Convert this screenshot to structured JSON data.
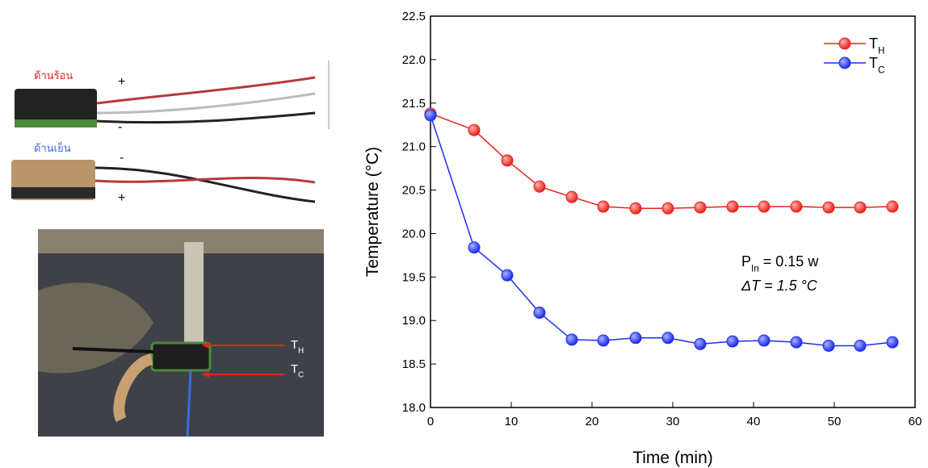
{
  "photo_labels": {
    "hot_side": "ด้านร้อน",
    "cold_side": "ด้านเย็น",
    "top_plus": "+",
    "top_minus": "-",
    "bottom_minus": "-",
    "bottom_plus": "+",
    "th": "TH",
    "tc": "TC"
  },
  "chart_data": {
    "type": "line",
    "xlabel": "Time (min)",
    "ylabel": "Temperature (°C)",
    "annotations": [
      "PIn = 0.15 w",
      "ΔT = 1.5 °C"
    ],
    "x": [
      0,
      5.4,
      9.5,
      13.5,
      17.5,
      21.4,
      25.4,
      29.4,
      33.4,
      37.4,
      41.3,
      45.3,
      49.3,
      53.2,
      57.2
    ],
    "series": [
      {
        "name": "TH",
        "color": "#e8221c",
        "values": [
          21.38,
          21.19,
          20.84,
          20.54,
          20.42,
          20.31,
          20.29,
          20.29,
          20.3,
          20.31,
          20.31,
          20.31,
          20.3,
          20.3,
          20.31
        ]
      },
      {
        "name": "TC",
        "color": "#1c2ee8",
        "values": [
          21.36,
          19.84,
          19.52,
          19.09,
          18.78,
          18.77,
          18.8,
          18.8,
          18.73,
          18.76,
          18.77,
          18.75,
          18.71,
          18.71,
          18.75
        ]
      }
    ],
    "xlim": [
      0,
      60
    ],
    "xticks": [
      0,
      10,
      20,
      30,
      40,
      50,
      60
    ],
    "ylim": [
      18,
      22.5
    ],
    "yticks": [
      {
        "value": 18,
        "label": "18.0"
      },
      18.5,
      {
        "value": 19,
        "label": "19.0"
      },
      19.5,
      {
        "value": 20,
        "label": "20.0"
      },
      20.5,
      {
        "value": 21,
        "label": "21.0"
      },
      21.5,
      {
        "value": 22,
        "label": "22.0"
      },
      22.5
    ],
    "legend": "upper right",
    "grid": false
  }
}
